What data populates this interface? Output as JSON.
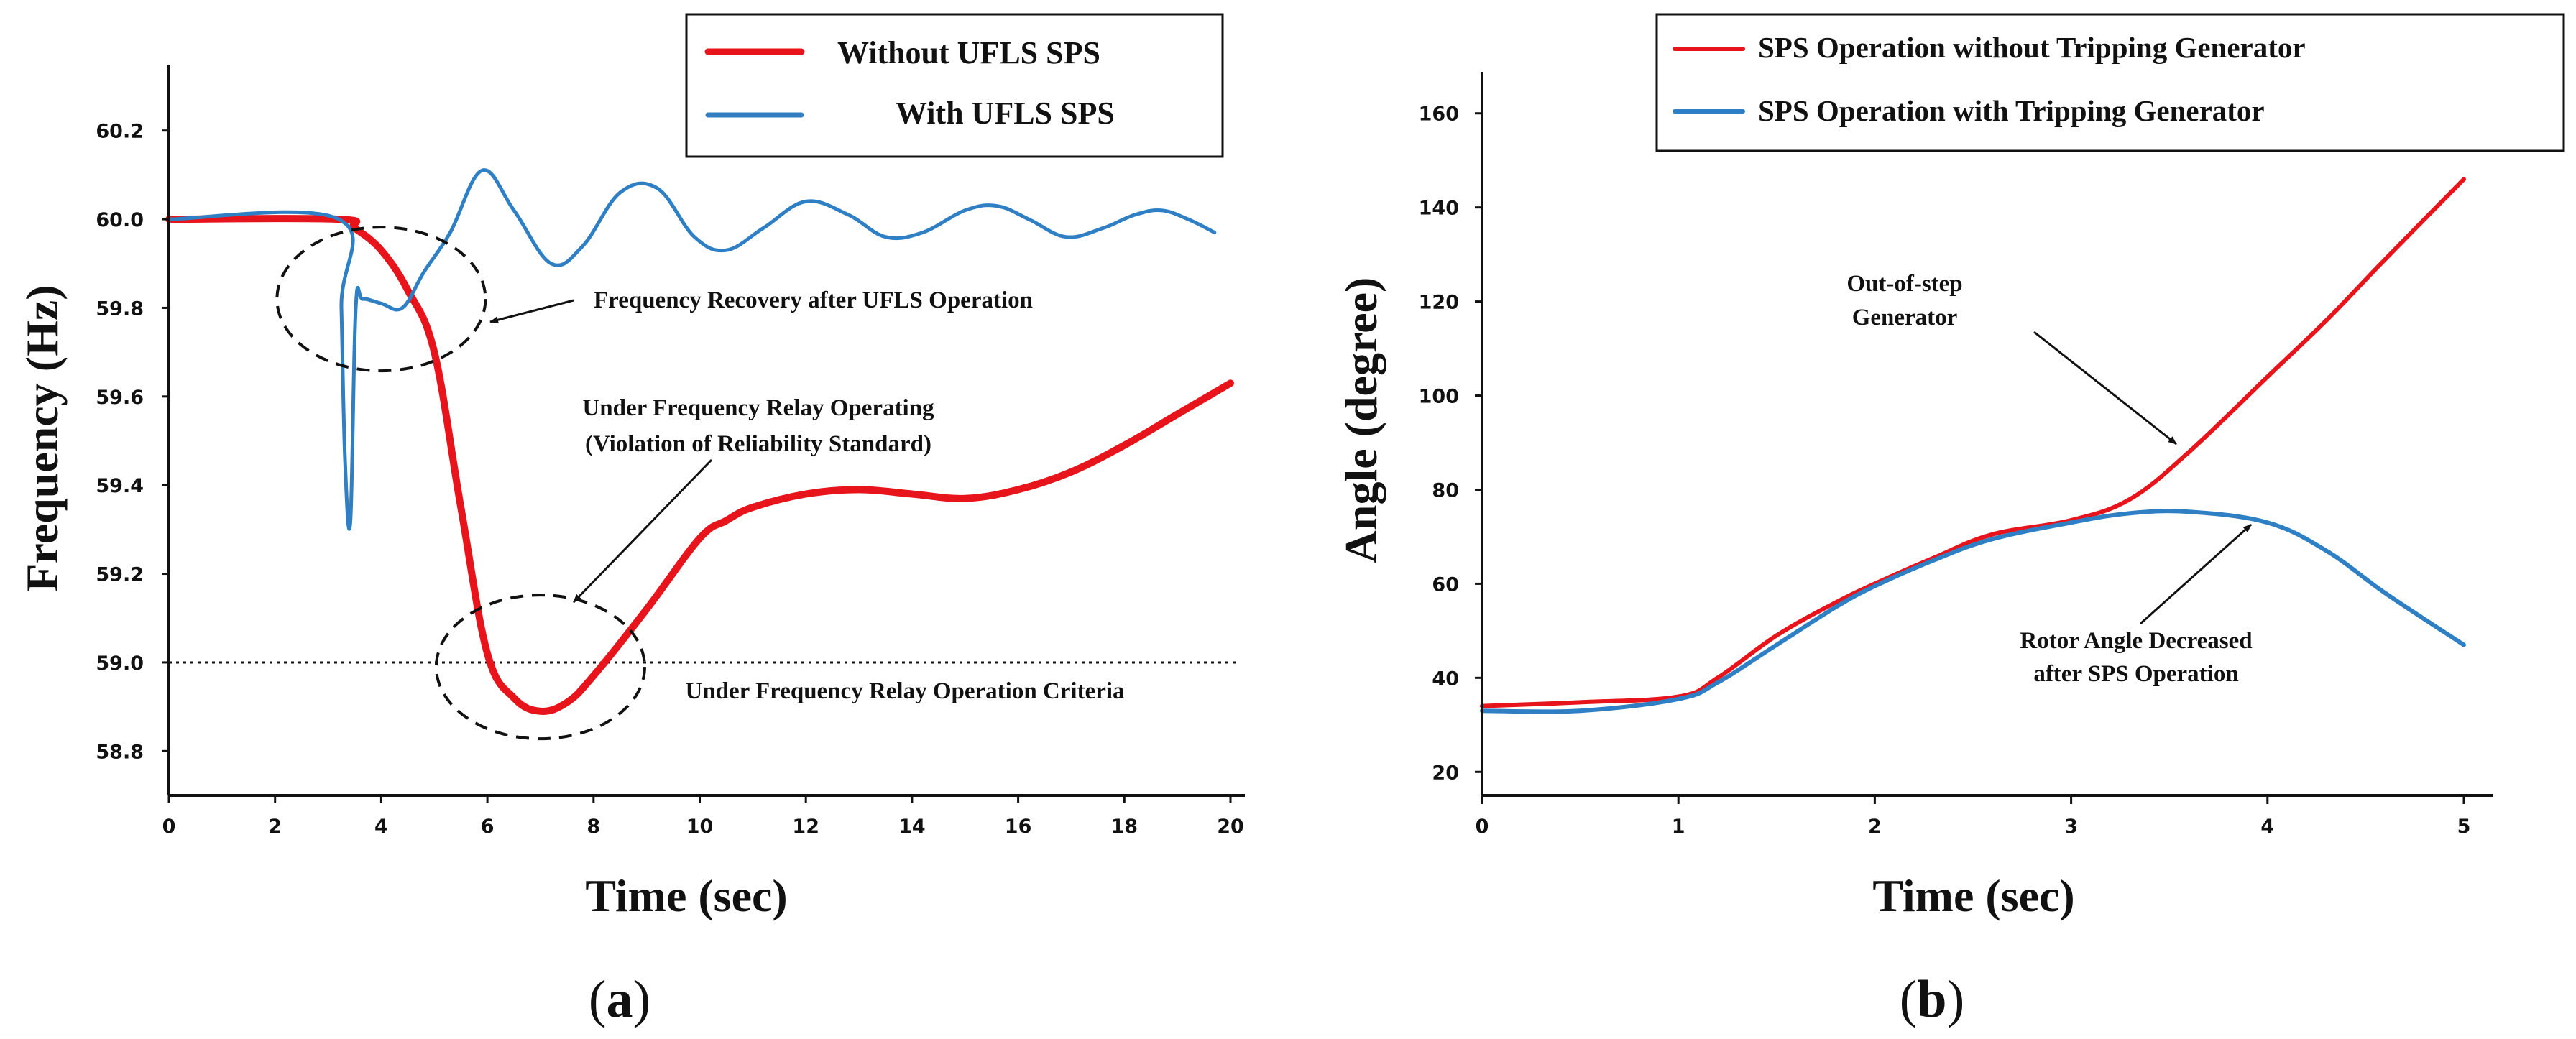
{
  "chart_data": [
    {
      "type": "line",
      "caption": "a",
      "xlabel": "Time (sec)",
      "ylabel": "Frequency (Hz)",
      "xlim": [
        0,
        20
      ],
      "ylim": [
        58.7,
        60.3
      ],
      "xticks": [
        0,
        2,
        4,
        6,
        8,
        10,
        12,
        14,
        16,
        18,
        20
      ],
      "yticks": [
        "60.2",
        "60.0",
        "59.8",
        "59.6",
        "59.4",
        "59.2",
        "59.0",
        "58.8"
      ],
      "legend_position": "top-right",
      "series": [
        {
          "name": "Without UFLS SPS",
          "color": "#e8141b",
          "x": [
            0,
            3.2,
            3.5,
            4.0,
            4.5,
            5.0,
            5.5,
            6.0,
            6.5,
            7.0,
            7.5,
            8.0,
            9.0,
            10.0,
            10.5,
            11.0,
            12.0,
            13.0,
            14.0,
            15.0,
            16.0,
            17.0,
            18.0,
            19.0,
            20.0
          ],
          "y": [
            60.0,
            60.0,
            59.98,
            59.93,
            59.84,
            59.7,
            59.35,
            59.02,
            58.92,
            58.89,
            58.91,
            58.97,
            59.12,
            59.28,
            59.32,
            59.35,
            59.38,
            59.39,
            59.38,
            59.37,
            59.39,
            59.43,
            59.49,
            59.56,
            59.63
          ]
        },
        {
          "name": "With UFLS SPS",
          "color": "#2e7fc4",
          "x": [
            0,
            3.2,
            3.25,
            3.32,
            3.42,
            3.52,
            3.65,
            4.0,
            4.4,
            4.8,
            5.3,
            5.9,
            6.5,
            7.2,
            7.8,
            8.5,
            9.2,
            9.9,
            10.5,
            11.2,
            12.0,
            12.8,
            13.5,
            14.2,
            15.0,
            15.6,
            16.2,
            16.9,
            17.6,
            18.2,
            18.7,
            19.2,
            19.7
          ],
          "y": [
            60.0,
            60.0,
            59.8,
            59.45,
            59.32,
            59.8,
            59.82,
            59.81,
            59.8,
            59.88,
            59.97,
            60.11,
            60.02,
            59.9,
            59.94,
            60.06,
            60.07,
            59.96,
            59.93,
            59.98,
            60.04,
            60.01,
            59.96,
            59.97,
            60.02,
            60.03,
            60.0,
            59.96,
            59.98,
            60.01,
            60.02,
            60.0,
            59.97
          ]
        }
      ],
      "reference_line": {
        "y": 59.0,
        "label": "Under Frequency Relay Operation Criteria"
      },
      "annotations": [
        {
          "text": "Frequency Recovery after UFLS Operation",
          "kind": "arrow_label"
        },
        {
          "text": "Under Frequency Relay Operating",
          "kind": "arrow_label"
        },
        {
          "text": "(Violation of Reliability Standard)",
          "kind": "arrow_label"
        }
      ],
      "highlight_ellipses": [
        {
          "cx": 4.0,
          "cy": 59.82,
          "note": "recovery region"
        },
        {
          "cx": 7.0,
          "cy": 58.99,
          "note": "frequency minimum"
        }
      ]
    },
    {
      "type": "line",
      "caption": "b",
      "xlabel": "Time (sec)",
      "ylabel": "Angle (degree)",
      "xlim": [
        0,
        5
      ],
      "ylim": [
        15,
        165
      ],
      "xticks": [
        0,
        1,
        2,
        3,
        4,
        5
      ],
      "yticks": [
        20,
        40,
        60,
        80,
        100,
        120,
        140,
        160
      ],
      "legend_position": "top-right",
      "series": [
        {
          "name": "SPS Operation without Tripping Generator",
          "color": "#e8141b",
          "x": [
            0,
            0.5,
            1.0,
            1.2,
            1.5,
            1.8,
            2.0,
            2.3,
            2.6,
            3.0,
            3.3,
            3.6,
            4.0,
            4.3,
            4.6,
            5.0
          ],
          "y": [
            34,
            34.8,
            36,
            40,
            49,
            56,
            60,
            65.5,
            70.5,
            73.5,
            78,
            88,
            104,
            116,
            129,
            146
          ]
        },
        {
          "name": "SPS Operation with Tripping Generator",
          "color": "#2e7fc4",
          "x": [
            0,
            0.5,
            1.0,
            1.2,
            1.5,
            1.8,
            2.0,
            2.3,
            2.6,
            3.0,
            3.3,
            3.6,
            4.0,
            4.3,
            4.6,
            5.0
          ],
          "y": [
            33,
            33,
            35.5,
            39,
            47,
            55,
            59.5,
            65,
            69.5,
            73,
            75,
            75.3,
            73,
            67,
            58,
            47
          ]
        }
      ],
      "annotations": [
        {
          "text": "Out-of-step",
          "kind": "arrow_label"
        },
        {
          "text": "Generator",
          "kind": "arrow_label"
        },
        {
          "text": "Rotor Angle Decreased",
          "kind": "arrow_label"
        },
        {
          "text": "after SPS Operation",
          "kind": "arrow_label"
        }
      ]
    }
  ]
}
